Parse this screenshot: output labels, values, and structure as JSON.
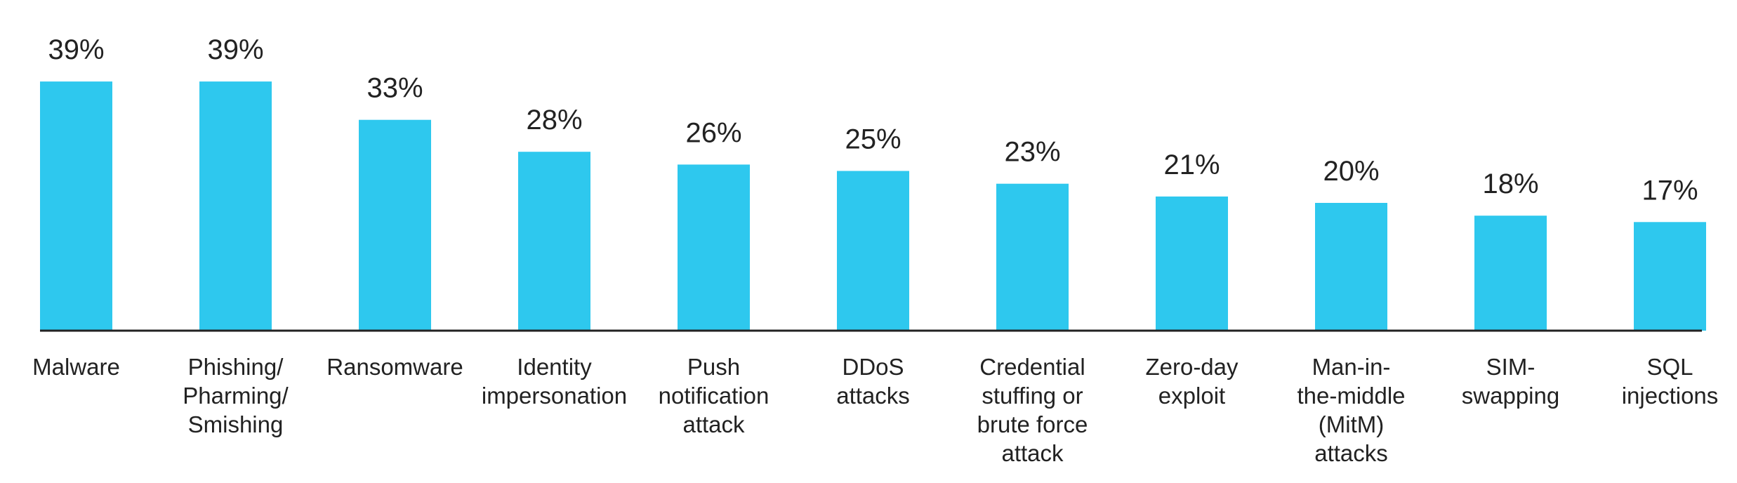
{
  "chart_data": {
    "type": "bar",
    "categories": [
      "Malware",
      "Phishing/\nPharming/\nSmishing",
      "Ransomware",
      "Identity\nimpersonation",
      "Push\nnotification\nattack",
      "DDoS\nattacks",
      "Credential\nstuffing or\nbrute force\nattack",
      "Zero-day\nexploit",
      "Man-in-\nthe-middle\n(MitM)\nattacks",
      "SIM-\nswapping",
      "SQL\ninjections"
    ],
    "values": [
      39,
      39,
      33,
      28,
      26,
      25,
      23,
      21,
      20,
      18,
      17
    ],
    "value_labels": [
      "39%",
      "39%",
      "33%",
      "28%",
      "26%",
      "25%",
      "23%",
      "21%",
      "20%",
      "18%",
      "17%"
    ],
    "color": "#2ec8ee"
  }
}
